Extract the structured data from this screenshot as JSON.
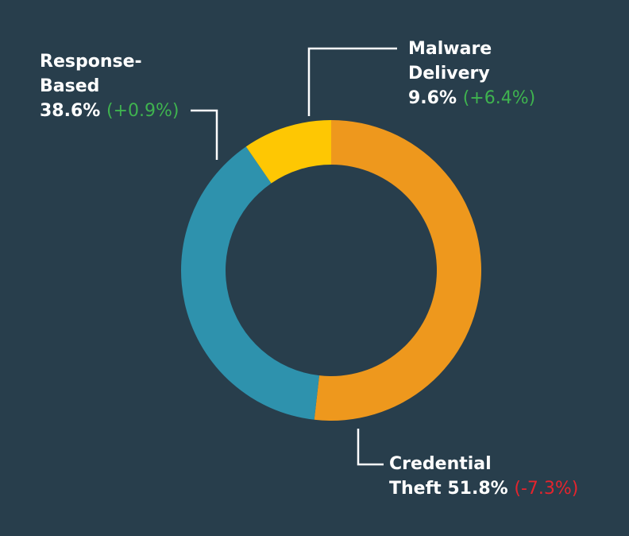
{
  "chart_data": {
    "type": "pie",
    "variant": "donut",
    "slices": [
      {
        "name_lines": [
          "Credential",
          "Theft"
        ],
        "value": 51.8,
        "value_label": "51.8%",
        "change_label": "(-7.3%)",
        "change_direction": "negative",
        "color": "#ee981d"
      },
      {
        "name_lines": [
          "Response-",
          "Based"
        ],
        "value": 38.6,
        "value_label": "38.6%",
        "change_label": "(+0.9%)",
        "change_direction": "positive",
        "color": "#2e92ad"
      },
      {
        "name_lines": [
          "Malware",
          "Delivery"
        ],
        "value": 9.6,
        "value_label": "9.6%",
        "change_label": "(+6.4%)",
        "change_direction": "positive",
        "color": "#fec703"
      }
    ],
    "start_angle_deg": 0,
    "direction": "clockwise",
    "legend": "none"
  },
  "colors": {
    "background": "#283e4c",
    "text": "#ffffff",
    "change_positive": "#3fb34f",
    "change_negative": "#e5242d",
    "leader_line": "#ffffff"
  }
}
